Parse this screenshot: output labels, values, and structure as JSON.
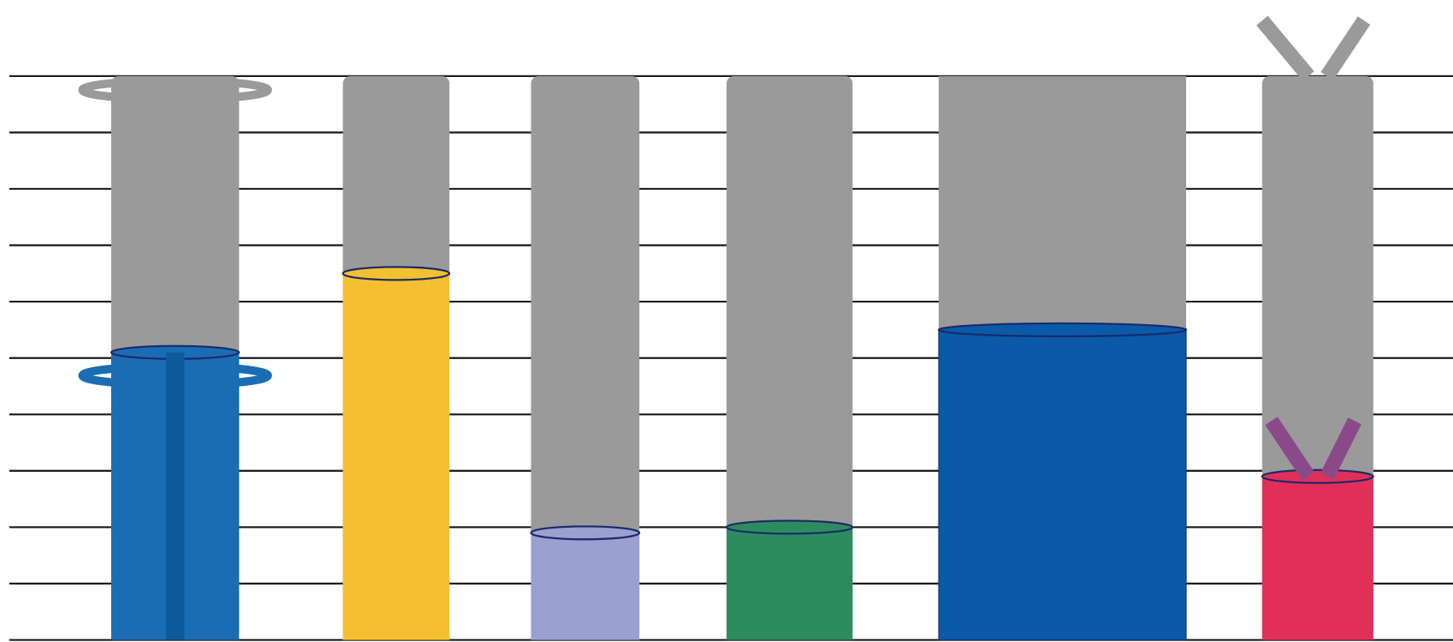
{
  "chart_data": {
    "type": "pictogram",
    "categories": [
      null,
      null,
      null,
      null,
      null,
      null
    ],
    "series": [
      {
        "color": "#9a9a9a",
        "values": [
          10,
          10,
          10,
          10,
          10,
          10
        ]
      },
      {
        "colors": [
          "#1b6db3",
          "#f5c030",
          "#9aa0d0",
          "#2e8b5e",
          "#0a5aa8",
          "#e0305a"
        ],
        "values": [
          5.1,
          6.5,
          1.9,
          2.0,
          5.5,
          2.9
        ]
      }
    ],
    "ylim": [
      0,
      10
    ],
    "yticks": [
      0,
      1,
      2,
      3,
      4,
      5,
      6,
      7,
      8,
      9,
      10
    ],
    "grid": true
  }
}
